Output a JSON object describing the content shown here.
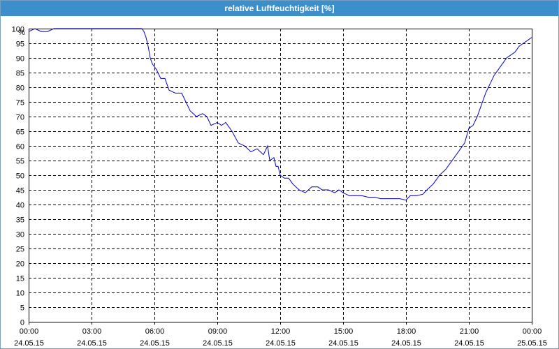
{
  "window": {
    "title": "relative Luftfeuchtigkeit [%]"
  },
  "colors": {
    "titlebar": "#3d8fcb",
    "line": "#0000cc",
    "grid": "#000000"
  },
  "chart_data": {
    "type": "line",
    "title": "relative Luftfeuchtigkeit [%]",
    "ylabel": "%",
    "xlabel": "",
    "ylim": [
      0,
      100
    ],
    "y_ticks": [
      0,
      5,
      10,
      15,
      20,
      25,
      30,
      35,
      40,
      45,
      50,
      55,
      60,
      65,
      70,
      75,
      80,
      85,
      90,
      95,
      100
    ],
    "x_range_hours": [
      0,
      24
    ],
    "x_ticks": [
      {
        "hour": 0,
        "time": "00:00",
        "date": "24.05.15"
      },
      {
        "hour": 3,
        "time": "03:00",
        "date": "24.05.15"
      },
      {
        "hour": 6,
        "time": "06:00",
        "date": "24.05.15"
      },
      {
        "hour": 9,
        "time": "09:00",
        "date": "24.05.15"
      },
      {
        "hour": 12,
        "time": "12:00",
        "date": "24.05.15"
      },
      {
        "hour": 15,
        "time": "15:00",
        "date": "24.05.15"
      },
      {
        "hour": 18,
        "time": "18:00",
        "date": "24.05.15"
      },
      {
        "hour": 21,
        "time": "21:00",
        "date": "24.05.15"
      },
      {
        "hour": 24,
        "time": "00:00",
        "date": "25.05.15"
      }
    ],
    "grid": true,
    "grid_style": "dashed",
    "series": [
      {
        "x": [
          0,
          0.3,
          0.6,
          0.9,
          1.2,
          2.0,
          3.0,
          4.0,
          5.0,
          5.4,
          5.5,
          5.6,
          5.7,
          5.8,
          5.9,
          6.0,
          6.1,
          6.3,
          6.5,
          6.7,
          7.0,
          7.3,
          7.5,
          7.7,
          8.0,
          8.3,
          8.5,
          8.7,
          9.0,
          9.2,
          9.4,
          9.7,
          10.0,
          10.3,
          10.6,
          10.9,
          11.2,
          11.4,
          11.5,
          11.7,
          11.8,
          11.9,
          12.0,
          12.2,
          12.4,
          12.6,
          12.9,
          13.2,
          13.5,
          13.8,
          14.0,
          14.3,
          14.6,
          14.8,
          15.0,
          15.3,
          15.6,
          15.9,
          16.2,
          16.5,
          16.8,
          17.1,
          17.4,
          17.7,
          18.0,
          18.2,
          18.5,
          18.8,
          19.0,
          19.3,
          19.6,
          19.9,
          20.2,
          20.5,
          20.8,
          21.0,
          21.2,
          21.4,
          21.6,
          21.8,
          22.0,
          22.2,
          22.4,
          22.6,
          22.8,
          23.0,
          23.2,
          23.4,
          23.6,
          23.8,
          24.0
        ],
        "y": [
          99,
          100,
          99,
          99,
          100,
          100,
          100,
          100,
          100,
          100,
          99,
          97,
          94,
          90,
          88,
          87,
          86,
          83,
          83,
          79,
          78,
          78,
          75,
          72,
          70,
          71,
          70,
          67,
          68,
          67,
          68,
          65,
          61,
          60,
          58,
          59,
          57,
          60,
          55,
          56,
          53,
          53,
          50,
          49,
          49,
          47,
          45,
          44,
          46,
          46,
          45,
          45,
          44,
          45,
          44,
          43,
          43,
          43,
          42.5,
          42.5,
          42,
          42,
          42,
          42,
          41.5,
          43,
          43,
          43.5,
          45,
          47,
          50,
          52,
          55,
          58,
          61,
          66,
          67,
          70,
          74,
          78,
          81,
          84,
          86,
          88,
          90,
          91,
          92,
          94,
          95,
          96,
          97
        ]
      }
    ]
  }
}
